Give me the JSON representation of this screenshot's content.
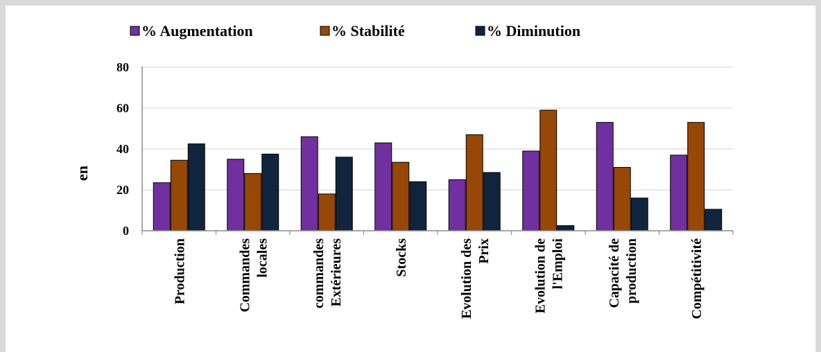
{
  "chart_data": {
    "type": "bar",
    "title": "",
    "xlabel": "",
    "ylabel": "en",
    "ylim": [
      0,
      80
    ],
    "yticks": [
      0,
      20,
      40,
      60,
      80
    ],
    "grid": true,
    "legend_position": "top",
    "categories": [
      [
        "Production"
      ],
      [
        "Commandes",
        "locales"
      ],
      [
        "commandes",
        "Extérieures"
      ],
      [
        "Stocks"
      ],
      [
        "Evolution des",
        "Prix"
      ],
      [
        "Evolution de",
        "l'Emploi"
      ],
      [
        "Capacité de",
        "production"
      ],
      [
        "Compétitivité"
      ]
    ],
    "series": [
      {
        "name": "% Augmentation",
        "color": "#7030a0",
        "values": [
          23.5,
          35,
          46,
          43,
          25,
          39,
          53,
          37
        ]
      },
      {
        "name": "% Stabilité",
        "color": "#974706",
        "values": [
          34.5,
          28,
          18,
          33.5,
          47,
          59,
          31,
          53
        ]
      },
      {
        "name": "% Diminution",
        "color": "#10243e",
        "values": [
          42.5,
          37.5,
          36,
          24,
          28.5,
          2.5,
          16,
          10.5
        ]
      }
    ]
  }
}
